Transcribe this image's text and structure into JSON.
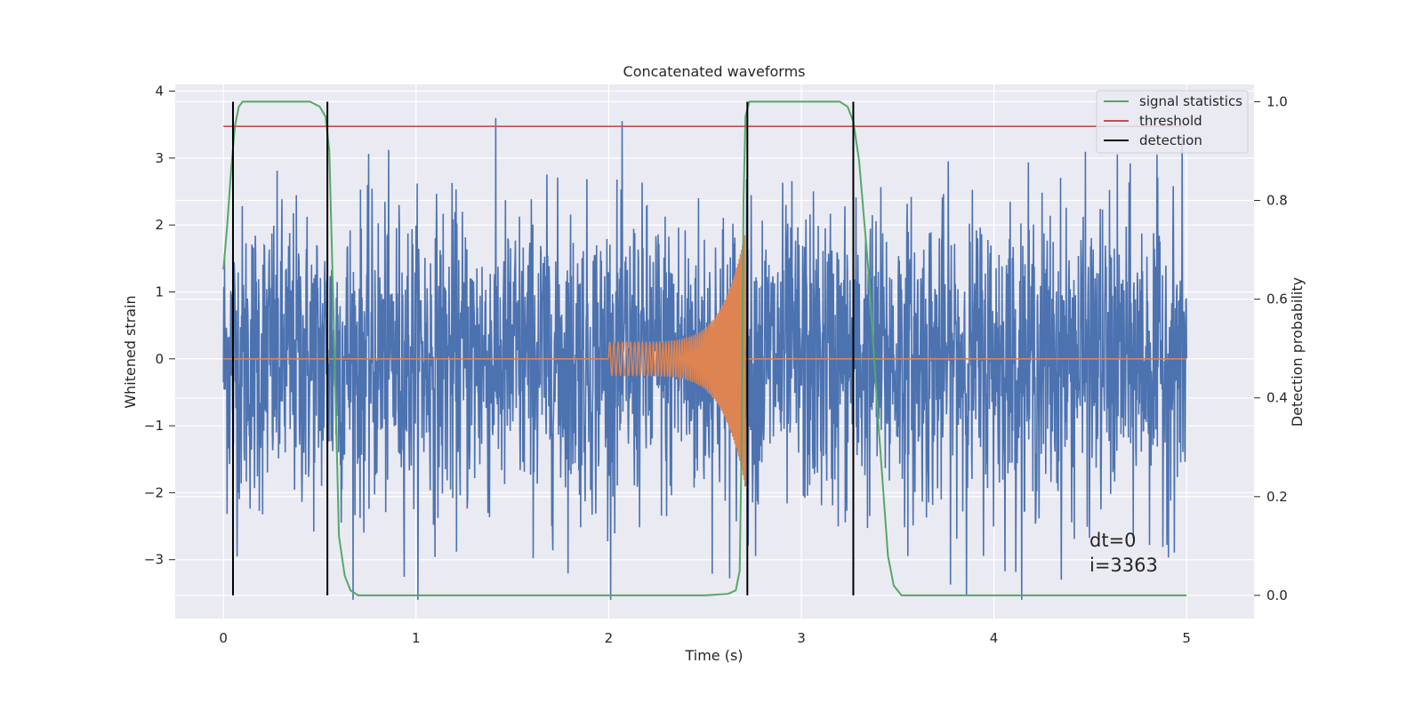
{
  "chart_data": {
    "type": "line",
    "title": "Concatenated waveforms",
    "xlabel": "Time (s)",
    "ylabel": "Whitened strain",
    "y2label": "Detection probability",
    "xlim": [
      -0.25,
      5.35
    ],
    "ylim": [
      -3.88,
      4.1
    ],
    "y2lim": [
      -0.047,
      1.035
    ],
    "xticks": [
      0,
      1,
      2,
      3,
      4,
      5
    ],
    "xtick_labels": [
      "0",
      "1",
      "2",
      "3",
      "4",
      "5"
    ],
    "yticks": [
      -3,
      -2,
      -1,
      0,
      1,
      2,
      3,
      4
    ],
    "ytick_labels": [
      "−3",
      "−2",
      "−1",
      "0",
      "1",
      "2",
      "3",
      "4"
    ],
    "y2ticks": [
      0.0,
      0.2,
      0.4,
      0.6,
      0.8,
      1.0
    ],
    "y2tick_labels": [
      "0.0",
      "0.2",
      "0.4",
      "0.6",
      "0.8",
      "1.0"
    ],
    "grid": true,
    "legend_position": "top-right",
    "series": [
      {
        "name": "signal statistics",
        "axis": "right",
        "color": "#55a868",
        "x": [
          0.0,
          0.02,
          0.04,
          0.06,
          0.08,
          0.1,
          0.12,
          0.15,
          0.3,
          0.45,
          0.5,
          0.53,
          0.55,
          0.57,
          0.6,
          0.63,
          0.66,
          0.7,
          1.0,
          2.0,
          2.5,
          2.62,
          2.66,
          2.68,
          2.69,
          2.7,
          2.71,
          2.73,
          2.76,
          2.8,
          3.0,
          3.2,
          3.24,
          3.27,
          3.3,
          3.35,
          3.4,
          3.45,
          3.48,
          3.52,
          4.0,
          4.5,
          5.0
        ],
        "values": [
          0.66,
          0.75,
          0.86,
          0.95,
          0.99,
          1.0,
          1.0,
          1.0,
          1.0,
          1.0,
          0.99,
          0.97,
          0.9,
          0.6,
          0.12,
          0.04,
          0.01,
          0.0,
          0.0,
          0.0,
          0.0,
          0.003,
          0.01,
          0.05,
          0.3,
          0.8,
          0.97,
          1.0,
          1.0,
          1.0,
          1.0,
          1.0,
          0.99,
          0.96,
          0.88,
          0.65,
          0.35,
          0.08,
          0.02,
          0.0,
          0.0,
          0.0,
          0.0
        ]
      },
      {
        "name": "threshold",
        "axis": "right",
        "color": "#c44e52",
        "x": [
          0.0,
          5.0
        ],
        "values": [
          0.95,
          0.95
        ]
      },
      {
        "name": "detection",
        "axis": "right",
        "color": "#000000",
        "x": [
          0.05,
          0.54,
          2.72,
          3.27
        ],
        "values": [
          1.0,
          1.0,
          1.0,
          1.0
        ]
      }
    ],
    "noise_trace": {
      "axis": "left",
      "color": "#4c72b0",
      "x_range": [
        0.0,
        5.0
      ],
      "points": 2600,
      "typical_amplitude": 1.5,
      "max_abs": 3.6
    },
    "injected_signal": {
      "axis": "left",
      "color": "#dd8452",
      "x_range": [
        2.0,
        2.71
      ],
      "start_amplitude": 0.25,
      "peak_amplitude": 1.9,
      "start_frequency_hz": 45,
      "end_frequency_hz": 180
    },
    "annotations": {
      "line1": "dt=0",
      "line2": "i=3363"
    }
  }
}
